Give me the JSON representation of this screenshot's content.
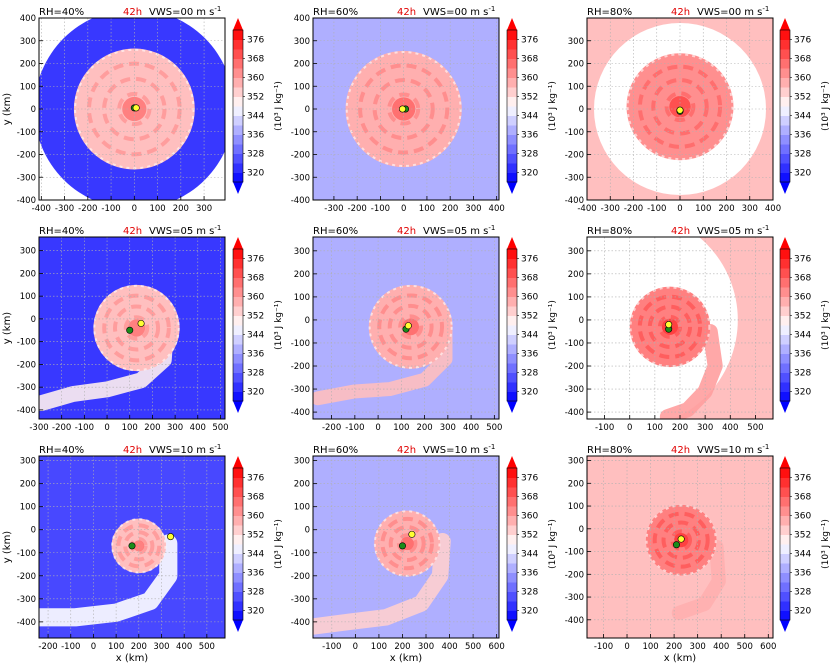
{
  "figure": {
    "time_label": "42h",
    "time_color": "#e00000",
    "xlabel": "x (km)",
    "ylabel": "y (km)",
    "colorbar_label": "(10³ J kg⁻¹)",
    "colorbar_ticks": [
      "320",
      "328",
      "336",
      "344",
      "352",
      "360",
      "368",
      "376"
    ],
    "colormap": "bwr",
    "vmin": 316,
    "vmax": 380,
    "vws_prefix": "VWS=",
    "vws_unit": "m s",
    "vws_exp": "-1"
  },
  "chart_data": [
    {
      "type": "heatmap",
      "rh": "RH=40%",
      "vws": "00",
      "xticks": [
        -400,
        -300,
        -200,
        -100,
        0,
        100,
        200,
        300
      ],
      "xlim": [
        -410,
        390
      ],
      "yticks": [
        -400,
        -300,
        -200,
        -100,
        0,
        100,
        200,
        300,
        400
      ],
      "ylim": [
        -400,
        400
      ],
      "env_value": 323,
      "env_shape": "circle",
      "env_radius": 430,
      "core": {
        "cx": 0,
        "cy": 0,
        "r": 260,
        "value": 356
      },
      "spiral": null,
      "center_green": [
        0,
        5
      ],
      "center_yellow": [
        8,
        5
      ]
    },
    {
      "type": "heatmap",
      "rh": "RH=60%",
      "vws": "00",
      "xticks": [
        -300,
        -200,
        -100,
        0,
        100,
        200,
        300,
        400
      ],
      "xlim": [
        -390,
        410
      ],
      "yticks": [
        -400,
        -300,
        -200,
        -100,
        0,
        100,
        200,
        300,
        400
      ],
      "ylim": [
        -400,
        400
      ],
      "env_value": 338,
      "env_shape": "fill",
      "env_radius": 0,
      "core": {
        "cx": 0,
        "cy": 0,
        "r": 250,
        "value": 358
      },
      "spiral": null,
      "center_green": [
        8,
        0
      ],
      "center_yellow": [
        -5,
        0
      ]
    },
    {
      "type": "heatmap",
      "rh": "RH=80%",
      "vws": "00",
      "xticks": [
        -400,
        -300,
        -200,
        -100,
        0,
        100,
        200,
        300,
        400
      ],
      "xlim": [
        -400,
        400
      ],
      "yticks": [
        -400,
        -300,
        -200,
        -100,
        0,
        100,
        200,
        300
      ],
      "ylim": [
        -400,
        400
      ],
      "env_value": 356,
      "env_shape": "ring",
      "env_radius": 370,
      "core": {
        "cx": 0,
        "cy": 10,
        "r": 230,
        "value": 362
      },
      "spiral": null,
      "center_green": [
        0,
        -10
      ],
      "center_yellow": [
        0,
        -5
      ]
    },
    {
      "type": "heatmap",
      "rh": "RH=40%",
      "vws": "05",
      "xticks": [
        -300,
        -200,
        -100,
        0,
        100,
        200,
        300,
        400,
        500
      ],
      "xlim": [
        -300,
        520
      ],
      "yticks": [
        -400,
        -300,
        -200,
        -100,
        0,
        100,
        200,
        300
      ],
      "ylim": [
        -440,
        360
      ],
      "env_value": 323,
      "env_shape": "fill",
      "env_radius": 0,
      "core": {
        "cx": 130,
        "cy": -40,
        "r": 190,
        "value": 356
      },
      "spiral": {
        "value": 350,
        "points": [
          [
            260,
            -40
          ],
          [
            250,
            -180
          ],
          [
            150,
            -270
          ],
          [
            0,
            -310
          ],
          [
            -150,
            -330
          ],
          [
            -290,
            -370
          ]
        ],
        "width": 70
      },
      "center_green": [
        100,
        -50
      ],
      "center_yellow": [
        150,
        -20
      ]
    },
    {
      "type": "heatmap",
      "rh": "RH=60%",
      "vws": "05",
      "xticks": [
        -200,
        -100,
        0,
        100,
        200,
        300,
        400,
        500
      ],
      "xlim": [
        -280,
        520
      ],
      "yticks": [
        -400,
        -300,
        -200,
        -100,
        0,
        100,
        200,
        300
      ],
      "ylim": [
        -430,
        360
      ],
      "env_value": 338,
      "env_shape": "fill",
      "env_radius": 0,
      "core": {
        "cx": 140,
        "cy": -30,
        "r": 180,
        "value": 358
      },
      "spiral": {
        "value": 356,
        "points": [
          [
            290,
            -20
          ],
          [
            290,
            -170
          ],
          [
            200,
            -260
          ],
          [
            50,
            -300
          ],
          [
            -100,
            -310
          ],
          [
            -260,
            -340
          ]
        ],
        "width": 60
      },
      "center_green": [
        120,
        -40
      ],
      "center_yellow": [
        130,
        -25
      ]
    },
    {
      "type": "heatmap",
      "rh": "RH=80%",
      "vws": "05",
      "xticks": [
        -100,
        0,
        100,
        200,
        300,
        400,
        500
      ],
      "xlim": [
        -170,
        570
      ],
      "yticks": [
        -400,
        -300,
        -200,
        -100,
        0,
        100,
        200,
        300
      ],
      "ylim": [
        -430,
        360
      ],
      "env_value": 356,
      "env_shape": "ring",
      "env_radius": 430,
      "core": {
        "cx": 160,
        "cy": -30,
        "r": 160,
        "value": 364
      },
      "spiral": {
        "value": 360,
        "points": [
          [
            320,
            -50
          ],
          [
            340,
            -200
          ],
          [
            300,
            -310
          ],
          [
            230,
            -390
          ],
          [
            150,
            -420
          ]
        ],
        "width": 60
      },
      "center_green": [
        155,
        -40
      ],
      "center_yellow": [
        155,
        -20
      ]
    },
    {
      "type": "heatmap",
      "rh": "RH=40%",
      "vws": "10",
      "xticks": [
        -200,
        -100,
        0,
        100,
        200,
        300,
        400,
        500
      ],
      "xlim": [
        -240,
        580
      ],
      "yticks": [
        -400,
        -300,
        -200,
        -100,
        0,
        100,
        200,
        300
      ],
      "ylim": [
        -470,
        320
      ],
      "env_value": 325,
      "env_shape": "fill",
      "env_radius": 0,
      "core": {
        "cx": 200,
        "cy": -70,
        "r": 120,
        "value": 356
      },
      "spiral": {
        "value": 348,
        "points": [
          [
            330,
            -60
          ],
          [
            330,
            -200
          ],
          [
            250,
            -310
          ],
          [
            100,
            -360
          ],
          [
            -80,
            -380
          ],
          [
            -240,
            -380
          ]
        ],
        "width": 80
      },
      "center_green": [
        170,
        -70
      ],
      "center_yellow": [
        340,
        -30
      ]
    },
    {
      "type": "heatmap",
      "rh": "RH=60%",
      "vws": "10",
      "xticks": [
        -100,
        0,
        100,
        200,
        300,
        400,
        500,
        600
      ],
      "xlim": [
        -180,
        610
      ],
      "yticks": [
        -400,
        -300,
        -200,
        -100,
        0,
        100,
        200,
        300
      ],
      "ylim": [
        -470,
        320
      ],
      "env_value": 338,
      "env_shape": "fill",
      "env_radius": 0,
      "core": {
        "cx": 220,
        "cy": -60,
        "r": 140,
        "value": 358
      },
      "spiral": {
        "value": 354,
        "points": [
          [
            370,
            -50
          ],
          [
            360,
            -200
          ],
          [
            280,
            -320
          ],
          [
            130,
            -380
          ],
          [
            -30,
            -400
          ],
          [
            -180,
            -420
          ]
        ],
        "width": 70
      },
      "center_green": [
        200,
        -70
      ],
      "center_yellow": [
        240,
        -20
      ]
    },
    {
      "type": "heatmap",
      "rh": "RH=80%",
      "vws": "10",
      "xticks": [
        -100,
        0,
        100,
        200,
        300,
        400,
        500,
        600
      ],
      "xlim": [
        -170,
        620
      ],
      "yticks": [
        -400,
        -300,
        -200,
        -100,
        0,
        100,
        200,
        300
      ],
      "ylim": [
        -480,
        320
      ],
      "env_value": 356,
      "env_shape": "fill",
      "env_radius": 0,
      "core": {
        "cx": 230,
        "cy": -50,
        "r": 150,
        "value": 364
      },
      "spiral": {
        "value": 358,
        "points": [
          [
            380,
            -80
          ],
          [
            390,
            -230
          ],
          [
            330,
            -330
          ],
          [
            220,
            -370
          ]
        ],
        "width": 60
      },
      "center_green": [
        210,
        -70
      ],
      "center_yellow": [
        230,
        -45
      ]
    }
  ]
}
